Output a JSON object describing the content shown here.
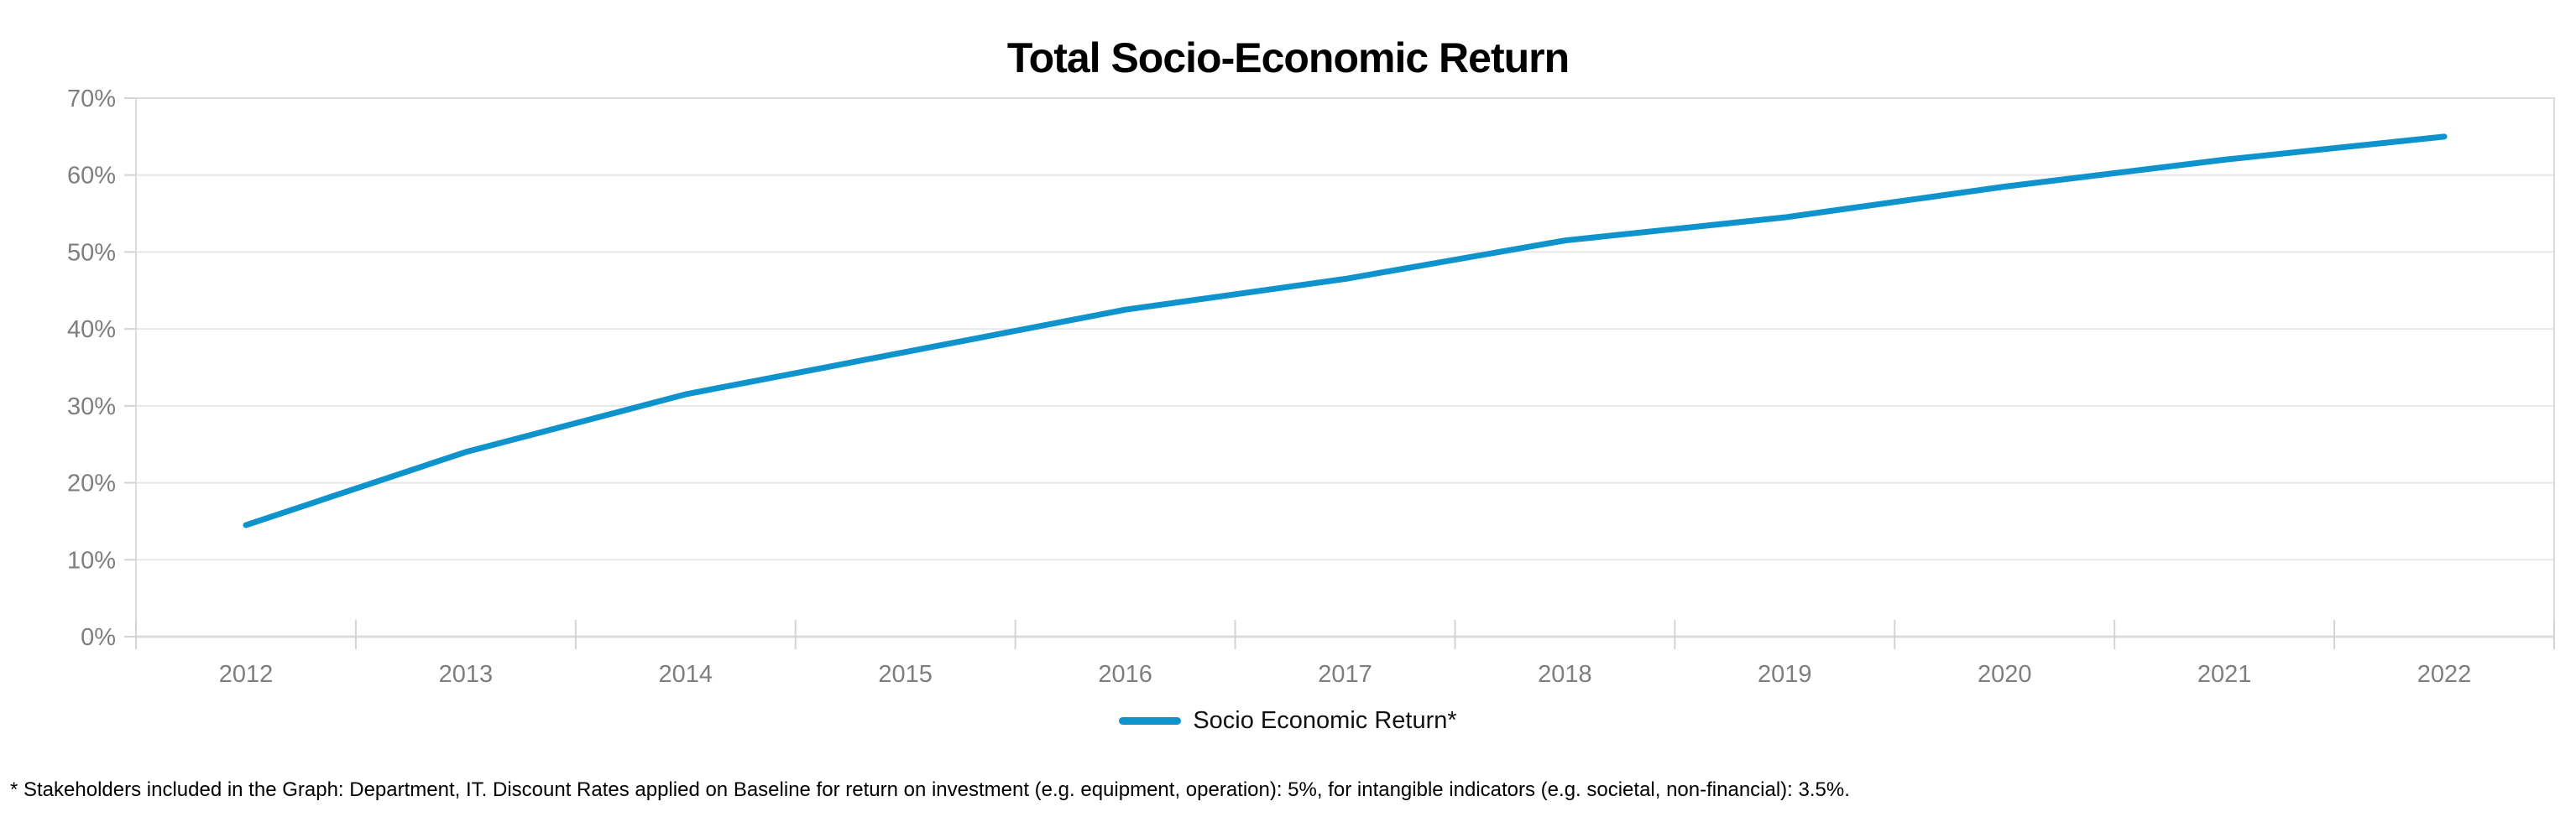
{
  "title": "Total Socio-Economic Return",
  "legend": {
    "label": "Socio Economic Return*"
  },
  "footnote": "* Stakeholders included in the Graph: Department, IT. Discount Rates applied on Baseline for return on investment (e.g. equipment, operation): 5%, for intangible indicators (e.g. societal, non-financial): 3.5%.",
  "chart_data": {
    "type": "line",
    "title": "Total Socio-Economic Return",
    "x": [
      "2012",
      "2013",
      "2014",
      "2015",
      "2016",
      "2017",
      "2018",
      "2019",
      "2020",
      "2021",
      "2022"
    ],
    "series": [
      {
        "name": "Socio Economic Return*",
        "color": "#0E93CC",
        "values": [
          14.5,
          24,
          31.5,
          37,
          42.5,
          46.5,
          51.5,
          54.5,
          58.5,
          62,
          65
        ]
      }
    ],
    "xlabel": "",
    "ylabel": "",
    "ylim": [
      0,
      70
    ],
    "ytick_step": 10,
    "ytick_format": "percent",
    "grid": true,
    "legend_position": "bottom-center",
    "axis_label_color": "#7E7E7E",
    "gridline_color": "#E7E7E7",
    "axis_line_color": "#DCDCDC",
    "tick_color": "#D4D4D4"
  }
}
